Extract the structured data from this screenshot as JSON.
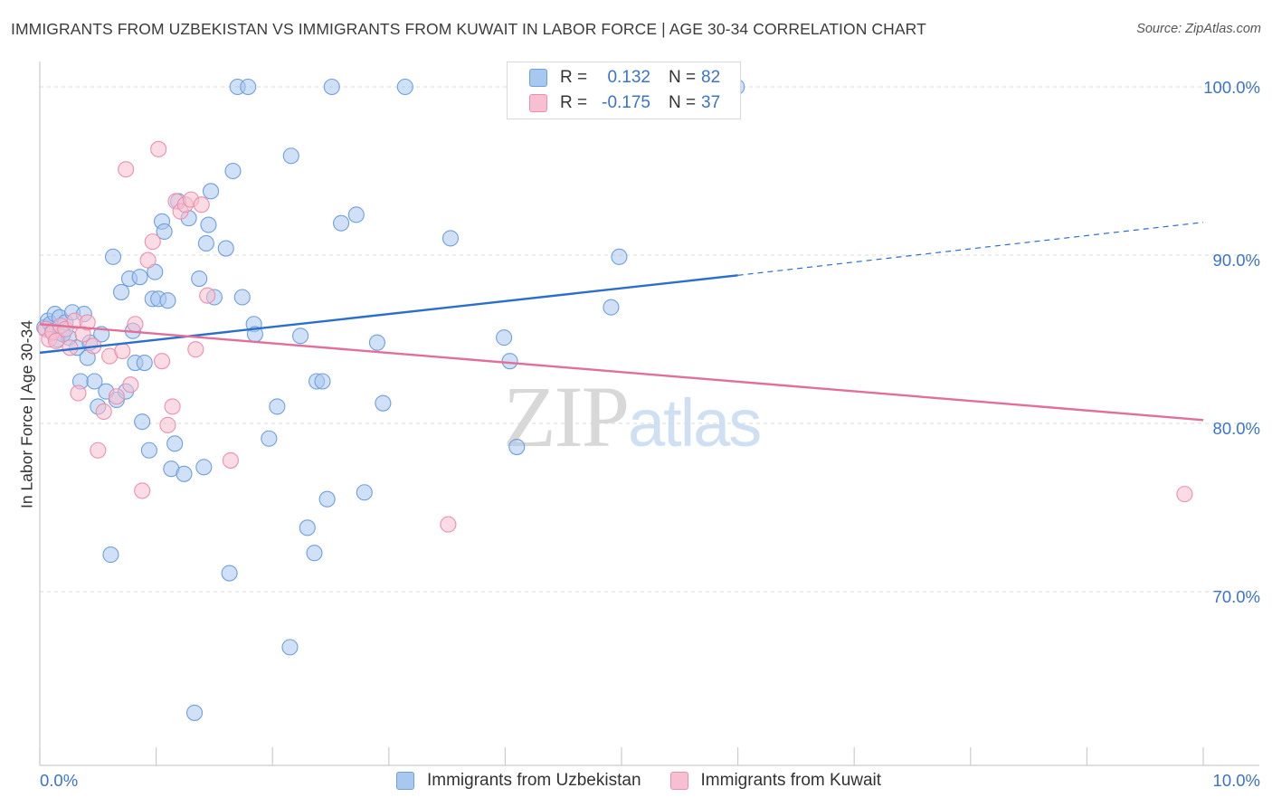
{
  "title": "IMMIGRANTS FROM UZBEKISTAN VS IMMIGRANTS FROM KUWAIT IN LABOR FORCE | AGE 30-34 CORRELATION CHART",
  "source": "Source: ZipAtlas.com",
  "watermark": {
    "zip": "ZIP",
    "atlas": "atlas"
  },
  "colors": {
    "uzbekistan_fill": "#a9c8f0",
    "uzbekistan_stroke": "#6f9fdc",
    "uzbekistan_line": "#2b6fcc",
    "kuwait_fill": "#f7bfd0",
    "kuwait_stroke": "#ec8fae",
    "kuwait_line": "#e0709a",
    "tick_label": "#3a74c9",
    "grid": "#d8d8d8"
  },
  "legend_top": [
    {
      "r_label": "R =",
      "r_value": " 0.132",
      "n_label": "N =",
      "n_value": "82"
    },
    {
      "r_label": "R =",
      "r_value": "-0.175",
      "n_label": "N =",
      "n_value": "37"
    }
  ],
  "legend_bottom": [
    "Immigrants from Uzbekistan",
    "Immigrants from Kuwait"
  ],
  "chart_data": {
    "type": "scatter",
    "title": "IMMIGRANTS FROM UZBEKISTAN VS IMMIGRANTS FROM KUWAIT IN LABOR FORCE | AGE 30-34 CORRELATION CHART",
    "xlabel": "",
    "ylabel": "In Labor Force | Age 30-34",
    "xlim": [
      0,
      10
    ],
    "ylim": [
      61,
      101.5
    ],
    "x_tick_labels": [
      "0.0%",
      "10.0%"
    ],
    "y_ticks": [
      70,
      80,
      90,
      100
    ],
    "y_tick_labels": [
      "70.0%",
      "80.0%",
      "90.0%",
      "100.0%"
    ],
    "grid": "horizontal dashed",
    "legend_position": "bottom",
    "series": [
      {
        "name": "Immigrants from Uzbekistan",
        "r": 0.132,
        "n": 82,
        "trend": {
          "x": [
            0,
            6.0
          ],
          "y": [
            84.2,
            88.8
          ],
          "dashed_to": {
            "x": 10.0,
            "y": 91.95
          }
        },
        "points": [
          [
            0.04,
            85.7
          ],
          [
            0.07,
            86.1
          ],
          [
            0.09,
            85.9
          ],
          [
            0.11,
            85.5
          ],
          [
            0.13,
            86.5
          ],
          [
            0.15,
            85.0
          ],
          [
            0.17,
            86.3
          ],
          [
            0.2,
            85.3
          ],
          [
            0.22,
            86.0
          ],
          [
            0.25,
            85.1
          ],
          [
            0.28,
            86.6
          ],
          [
            0.32,
            84.5
          ],
          [
            0.35,
            82.5
          ],
          [
            0.38,
            86.5
          ],
          [
            0.41,
            83.9
          ],
          [
            0.43,
            84.8
          ],
          [
            0.47,
            82.5
          ],
          [
            0.5,
            81.0
          ],
          [
            0.53,
            85.3
          ],
          [
            0.57,
            81.9
          ],
          [
            0.61,
            72.2
          ],
          [
            0.63,
            89.9
          ],
          [
            0.66,
            81.4
          ],
          [
            0.7,
            87.8
          ],
          [
            0.74,
            81.9
          ],
          [
            0.77,
            88.6
          ],
          [
            0.8,
            85.5
          ],
          [
            0.82,
            83.6
          ],
          [
            0.86,
            88.7
          ],
          [
            0.88,
            80.1
          ],
          [
            0.9,
            83.6
          ],
          [
            0.94,
            78.4
          ],
          [
            0.97,
            87.4
          ],
          [
            0.99,
            89.0
          ],
          [
            1.02,
            87.4
          ],
          [
            1.05,
            92.0
          ],
          [
            1.07,
            91.4
          ],
          [
            1.1,
            87.3
          ],
          [
            1.13,
            77.3
          ],
          [
            1.16,
            78.8
          ],
          [
            1.19,
            93.2
          ],
          [
            1.24,
            77.0
          ],
          [
            1.28,
            92.2
          ],
          [
            1.33,
            62.8
          ],
          [
            1.37,
            88.6
          ],
          [
            1.41,
            77.4
          ],
          [
            1.43,
            90.7
          ],
          [
            1.45,
            91.8
          ],
          [
            1.47,
            93.8
          ],
          [
            1.5,
            87.5
          ],
          [
            1.6,
            90.4
          ],
          [
            1.7,
            100.0
          ],
          [
            1.79,
            100.0
          ],
          [
            1.63,
            71.1
          ],
          [
            1.74,
            87.5
          ],
          [
            1.66,
            95.0
          ],
          [
            1.84,
            85.9
          ],
          [
            1.85,
            85.3
          ],
          [
            1.97,
            79.1
          ],
          [
            2.04,
            81.0
          ],
          [
            2.16,
            95.9
          ],
          [
            2.15,
            66.7
          ],
          [
            2.24,
            85.2
          ],
          [
            2.3,
            73.8
          ],
          [
            2.36,
            72.3
          ],
          [
            2.38,
            82.5
          ],
          [
            2.43,
            82.5
          ],
          [
            2.47,
            75.5
          ],
          [
            2.51,
            100.0
          ],
          [
            2.59,
            91.9
          ],
          [
            2.72,
            92.4
          ],
          [
            2.79,
            75.9
          ],
          [
            2.9,
            84.8
          ],
          [
            2.95,
            81.2
          ],
          [
            3.14,
            100.0
          ],
          [
            3.53,
            91.0
          ],
          [
            3.99,
            85.1
          ],
          [
            4.04,
            83.7
          ],
          [
            4.1,
            78.6
          ],
          [
            4.91,
            86.9
          ],
          [
            4.98,
            89.9
          ],
          [
            5.99,
            100.0
          ]
        ]
      },
      {
        "name": "Immigrants from Kuwait",
        "r": -0.175,
        "n": 37,
        "trend": {
          "x": [
            0,
            10.0
          ],
          "y": [
            85.9,
            80.2
          ]
        },
        "points": [
          [
            0.05,
            85.6
          ],
          [
            0.08,
            85.0
          ],
          [
            0.11,
            85.4
          ],
          [
            0.14,
            84.9
          ],
          [
            0.18,
            85.8
          ],
          [
            0.22,
            85.6
          ],
          [
            0.26,
            84.5
          ],
          [
            0.3,
            86.1
          ],
          [
            0.33,
            81.8
          ],
          [
            0.37,
            85.3
          ],
          [
            0.41,
            86.0
          ],
          [
            0.46,
            84.6
          ],
          [
            0.5,
            78.4
          ],
          [
            0.55,
            80.7
          ],
          [
            0.6,
            84.0
          ],
          [
            0.66,
            81.6
          ],
          [
            0.71,
            84.3
          ],
          [
            0.74,
            95.1
          ],
          [
            0.78,
            82.3
          ],
          [
            0.82,
            85.9
          ],
          [
            0.88,
            76.0
          ],
          [
            0.93,
            89.7
          ],
          [
            0.97,
            90.8
          ],
          [
            1.02,
            96.3
          ],
          [
            1.05,
            83.7
          ],
          [
            1.1,
            79.9
          ],
          [
            1.14,
            81.0
          ],
          [
            1.17,
            93.2
          ],
          [
            1.21,
            92.6
          ],
          [
            1.25,
            93.0
          ],
          [
            1.3,
            93.3
          ],
          [
            1.34,
            84.4
          ],
          [
            1.39,
            93.0
          ],
          [
            1.44,
            87.6
          ],
          [
            1.64,
            77.8
          ],
          [
            3.51,
            74.0
          ],
          [
            9.84,
            75.8
          ]
        ]
      }
    ]
  }
}
